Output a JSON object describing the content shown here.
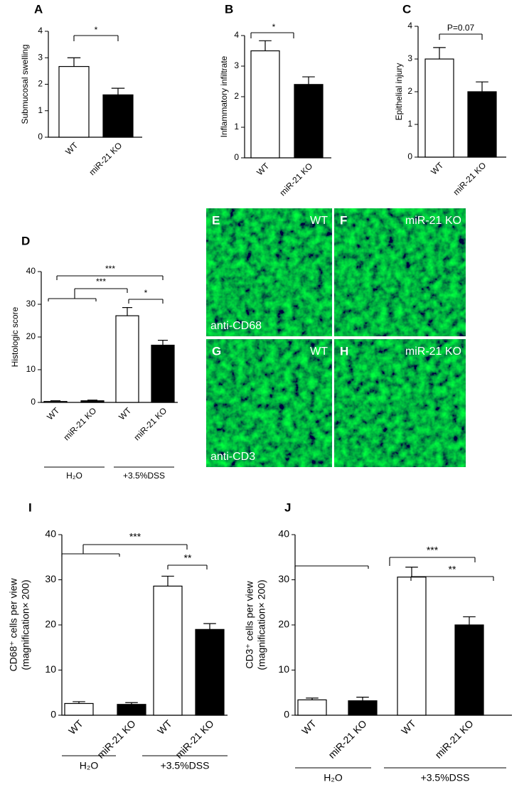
{
  "chart_data": [
    {
      "type": "bar",
      "letter": "A",
      "ylabel": [
        "Submucosal swelling"
      ],
      "categories": [
        "WT",
        "miR-21 KO"
      ],
      "values": [
        2.67,
        1.6
      ],
      "errors": [
        0.33,
        0.25
      ],
      "colors": [
        "#ffffff",
        "#000000"
      ],
      "ylim": [
        0,
        4
      ],
      "yticks": [
        0,
        1,
        2,
        3,
        4
      ],
      "annotations": [
        "*"
      ]
    },
    {
      "type": "bar",
      "letter": "B",
      "ylabel": [
        "Inflammatory infiltrate"
      ],
      "categories": [
        "WT",
        "miR-21 KO"
      ],
      "values": [
        3.5,
        2.4
      ],
      "errors": [
        0.33,
        0.25
      ],
      "colors": [
        "#ffffff",
        "#000000"
      ],
      "ylim": [
        0,
        4
      ],
      "yticks": [
        0,
        1,
        2,
        3,
        4
      ],
      "annotations": [
        "*"
      ]
    },
    {
      "type": "bar",
      "letter": "C",
      "ylabel": [
        "Epithelial injury"
      ],
      "categories": [
        "WT",
        "miR-21 KO"
      ],
      "values": [
        3.0,
        2.0
      ],
      "errors": [
        0.35,
        0.3
      ],
      "colors": [
        "#ffffff",
        "#000000"
      ],
      "ylim": [
        0,
        4
      ],
      "yticks": [
        0,
        1,
        2,
        3,
        4
      ],
      "annotations": [
        "P=0.07"
      ]
    },
    {
      "type": "bar",
      "letter": "D",
      "ylabel": [
        "Histologic  score"
      ],
      "categories": [
        "WT",
        "miR-21 KO",
        "WT",
        "miR-21 KO"
      ],
      "values": [
        0.3,
        0.5,
        26.5,
        17.5
      ],
      "errors": [
        0.2,
        0.2,
        2.5,
        1.5
      ],
      "colors": [
        "#ffffff",
        "#000000",
        "#ffffff",
        "#000000"
      ],
      "ylim": [
        0,
        40
      ],
      "yticks": [
        0,
        10,
        20,
        30,
        40
      ],
      "groups": [
        "H₂O",
        "+3.5%DSS"
      ],
      "annotations": [
        "***",
        "***",
        "*"
      ]
    },
    {
      "type": "bar",
      "letter": "I",
      "ylabel": [
        "CD68⁺ cells  per view",
        "(magnification× 200)"
      ],
      "categories": [
        "WT",
        "miR-21 KO",
        "WT",
        "miR-21 KO"
      ],
      "values": [
        2.6,
        2.4,
        28.6,
        19.0
      ],
      "errors": [
        0.4,
        0.4,
        2.2,
        1.3
      ],
      "colors": [
        "#ffffff",
        "#000000",
        "#ffffff",
        "#000000"
      ],
      "ylim": [
        0,
        40
      ],
      "yticks": [
        0,
        10,
        20,
        30,
        40
      ],
      "groups": [
        "H₂O",
        "+3.5%DSS"
      ],
      "annotations": [
        "***",
        "**"
      ]
    },
    {
      "type": "bar",
      "letter": "J",
      "ylabel": [
        "CD3⁺ cells  per view",
        "(magnification× 200)"
      ],
      "categories": [
        "WT",
        "miR-21 KO",
        "WT",
        "miR-21 KO"
      ],
      "values": [
        3.4,
        3.2,
        30.6,
        20.0
      ],
      "errors": [
        0.4,
        0.8,
        2.2,
        1.8
      ],
      "colors": [
        "#ffffff",
        "#000000",
        "#ffffff",
        "#000000"
      ],
      "ylim": [
        0,
        40
      ],
      "yticks": [
        0,
        10,
        20,
        30,
        40
      ],
      "groups": [
        "H₂O",
        "+3.5%DSS"
      ],
      "annotations": [
        "***",
        "**"
      ]
    }
  ],
  "images": [
    {
      "letter": "E",
      "label": "WT",
      "stain": "anti-CD68"
    },
    {
      "letter": "F",
      "label": "miR-21 KO"
    },
    {
      "letter": "G",
      "label": "WT",
      "stain": "anti-CD3"
    },
    {
      "letter": "H",
      "label": "miR-21 KO"
    }
  ]
}
